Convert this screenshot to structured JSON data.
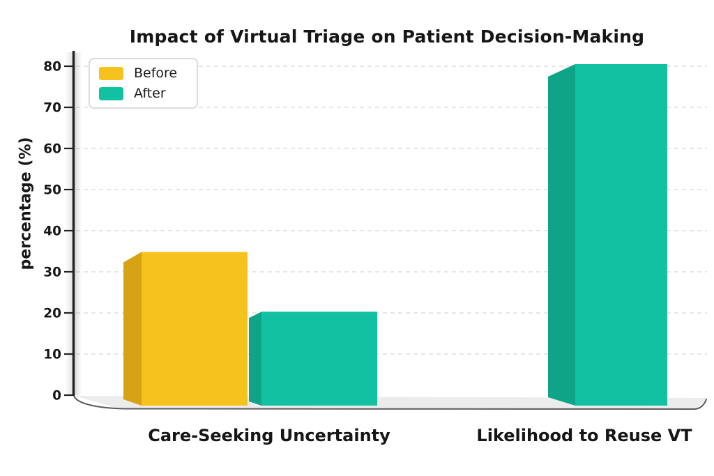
{
  "chart_data": {
    "type": "bar",
    "style": "pseudo-3d grouped bars",
    "title": "Impact of Virtual Triage on Patient Decision-Making",
    "ylabel": "percentage (%)",
    "xlabel": "",
    "categories": [
      "Care-Seeking Uncertainty",
      "Likelihood to Reuse VT"
    ],
    "series": [
      {
        "name": "Before",
        "color": "#F6C31E",
        "side_color": "#D7A213",
        "values": [
          36,
          null
        ]
      },
      {
        "name": "After",
        "color": "#12C1A1",
        "side_color": "#0FA488",
        "values": [
          22,
          80
        ]
      }
    ],
    "yticks": [
      0,
      10,
      20,
      30,
      40,
      50,
      60,
      70,
      80
    ],
    "ylim": [
      0,
      85
    ],
    "grid": "horizontal dashed light-gray",
    "legend_position": "top-left",
    "background_color": "#ffffff",
    "axis_color": "#222222",
    "gridline_color": "#d7d7d7",
    "floor_color": "#ececec",
    "text_color": "#161616"
  }
}
